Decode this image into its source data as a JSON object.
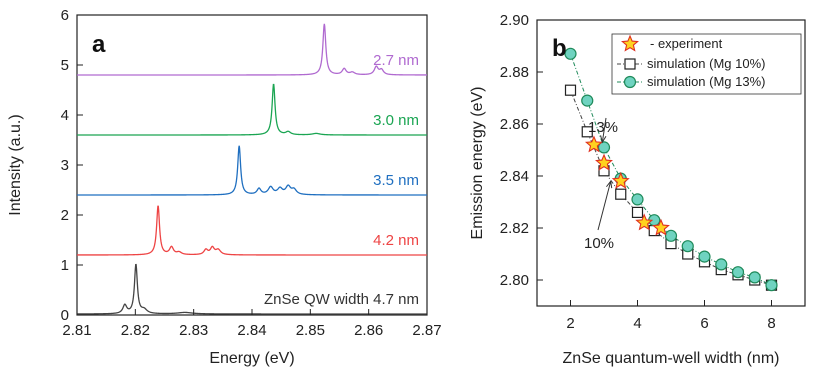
{
  "chart_data": [
    {
      "type": "line",
      "panel_label": "a",
      "xlabel": "Energy (eV)",
      "ylabel": "Intensity (a.u.)",
      "xlim": [
        2.81,
        2.87
      ],
      "ylim": [
        0,
        6
      ],
      "x_ticks": [
        "2.81",
        "2.82",
        "2.83",
        "2.84",
        "2.85",
        "2.86",
        "2.87"
      ],
      "y_ticks": [
        "0",
        "1",
        "2",
        "3",
        "4",
        "5",
        "6"
      ],
      "grid": false,
      "series": [
        {
          "name": "ZnSe QW width 4.7 nm",
          "color": "#444444",
          "baseline": 0.02,
          "peaks": [
            {
              "x": 2.8182,
              "h": 0.17,
              "w": 0.0004
            },
            {
              "x": 2.8201,
              "h": 0.98,
              "w": 0.0003
            },
            {
              "x": 2.8215,
              "h": 0.08,
              "w": 0.0006
            },
            {
              "x": 2.8285,
              "h": 0.03,
              "w": 0.0015
            }
          ]
        },
        {
          "name": "4.2 nm",
          "color": "#ee4444",
          "baseline": 1.2,
          "peaks": [
            {
              "x": 2.8239,
              "h": 0.98,
              "w": 0.0003
            },
            {
              "x": 2.8262,
              "h": 0.15,
              "w": 0.0004
            },
            {
              "x": 2.8275,
              "h": 0.05,
              "w": 0.0005
            },
            {
              "x": 2.8321,
              "h": 0.1,
              "w": 0.0004
            },
            {
              "x": 2.8332,
              "h": 0.14,
              "w": 0.0004
            },
            {
              "x": 2.8342,
              "h": 0.1,
              "w": 0.0005
            }
          ]
        },
        {
          "name": "3.5 nm",
          "color": "#1f6fc0",
          "baseline": 2.4,
          "peaks": [
            {
              "x": 2.8378,
              "h": 0.98,
              "w": 0.0003
            },
            {
              "x": 2.8412,
              "h": 0.12,
              "w": 0.0004
            },
            {
              "x": 2.8432,
              "h": 0.15,
              "w": 0.0005
            },
            {
              "x": 2.8448,
              "h": 0.12,
              "w": 0.0005
            },
            {
              "x": 2.8462,
              "h": 0.16,
              "w": 0.0005
            },
            {
              "x": 2.8472,
              "h": 0.1,
              "w": 0.0005
            }
          ]
        },
        {
          "name": "3.0 nm",
          "color": "#1aa552",
          "baseline": 3.6,
          "peaks": [
            {
              "x": 2.8437,
              "h": 1.02,
              "w": 0.0003
            },
            {
              "x": 2.8462,
              "h": 0.06,
              "w": 0.0005
            },
            {
              "x": 2.851,
              "h": 0.03,
              "w": 0.0008
            }
          ]
        },
        {
          "name": "2.7 nm",
          "color": "#b06ad0",
          "baseline": 4.8,
          "peaks": [
            {
              "x": 2.8524,
              "h": 1.02,
              "w": 0.0003
            },
            {
              "x": 2.8558,
              "h": 0.12,
              "w": 0.0004
            },
            {
              "x": 2.8572,
              "h": 0.05,
              "w": 0.0005
            },
            {
              "x": 2.8613,
              "h": 0.16,
              "w": 0.0004
            },
            {
              "x": 2.8622,
              "h": 0.1,
              "w": 0.0004
            }
          ]
        }
      ]
    },
    {
      "type": "scatter",
      "panel_label": "b",
      "xlabel": "ZnSe quantum-well width (nm)",
      "ylabel": "Emission energy (eV)",
      "xlim": [
        1,
        9
      ],
      "ylim": [
        2.79,
        2.9
      ],
      "x_ticks": [
        "2",
        "4",
        "6",
        "8"
      ],
      "y_ticks": [
        "2.80",
        "2.82",
        "2.84",
        "2.86",
        "2.88",
        "2.90"
      ],
      "grid": false,
      "legend_placement": "top-right",
      "series": [
        {
          "name": "- experiment",
          "marker": "star",
          "color": "#ffd21f",
          "edge_color": "#e03020",
          "x": [
            2.7,
            3.0,
            3.5,
            4.2,
            4.7
          ],
          "y": [
            2.852,
            2.845,
            2.838,
            2.822,
            2.82
          ]
        },
        {
          "name": "simulation (Mg 10%)",
          "marker": "square",
          "color": "#ffffff",
          "edge_color": "#222222",
          "x": [
            2.0,
            2.5,
            3.0,
            3.5,
            4.0,
            4.5,
            5.0,
            5.5,
            6.0,
            6.5,
            7.0,
            7.5,
            8.0
          ],
          "y": [
            2.873,
            2.857,
            2.842,
            2.833,
            2.826,
            2.819,
            2.814,
            2.81,
            2.807,
            2.804,
            2.802,
            2.8,
            2.798
          ]
        },
        {
          "name": "simulation (Mg 13%)",
          "marker": "circle",
          "color": "#6fd3c0",
          "edge_color": "#1f8a5a",
          "x": [
            2.0,
            2.5,
            3.0,
            3.5,
            4.0,
            4.5,
            5.0,
            5.5,
            6.0,
            6.5,
            7.0,
            7.5,
            8.0
          ],
          "y": [
            2.887,
            2.869,
            2.851,
            2.839,
            2.831,
            2.823,
            2.817,
            2.813,
            2.809,
            2.806,
            2.803,
            2.801,
            2.798
          ]
        }
      ],
      "annotations": [
        {
          "text": "13%",
          "arrow_to": [
            2.95,
            2.853
          ]
        },
        {
          "text": "10%",
          "arrow_to": [
            3.2,
            2.838
          ]
        }
      ]
    }
  ]
}
